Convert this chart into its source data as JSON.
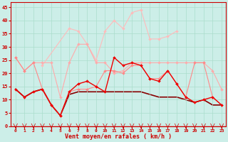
{
  "title": "",
  "xlabel": "Vent moyen/en rafales ( km/h )",
  "background_color": "#cceee8",
  "grid_color": "#aaddcc",
  "x": [
    0,
    1,
    2,
    3,
    4,
    5,
    6,
    7,
    8,
    9,
    10,
    11,
    12,
    13,
    14,
    15,
    16,
    17,
    18,
    19,
    20,
    21,
    22,
    23
  ],
  "ylim": [
    0,
    47
  ],
  "yticks": [
    0,
    5,
    10,
    15,
    20,
    25,
    30,
    35,
    40,
    45
  ],
  "series": [
    {
      "y": [
        null,
        null,
        null,
        23,
        null,
        null,
        37,
        36,
        31,
        25,
        36,
        40,
        37,
        43,
        44,
        33,
        33,
        34,
        36,
        null,
        null,
        null,
        null,
        null
      ],
      "color": "#ffbbbb",
      "linewidth": 0.8,
      "markersize": 2.0,
      "zorder": 2
    },
    {
      "y": [
        26,
        21,
        24,
        24,
        24,
        11,
        24,
        31,
        31,
        24,
        24,
        20,
        21,
        24,
        24,
        24,
        24,
        24,
        24,
        24,
        24,
        24,
        21,
        14
      ],
      "color": "#ffaaaa",
      "linewidth": 0.8,
      "markersize": 2.0,
      "zorder": 2
    },
    {
      "y": [
        26,
        21,
        24,
        14,
        8,
        4,
        13,
        14,
        14,
        15,
        21,
        21,
        20,
        23,
        23,
        18,
        18,
        21,
        16,
        11,
        24,
        24,
        11,
        8
      ],
      "color": "#ff8888",
      "linewidth": 0.8,
      "markersize": 2.0,
      "zorder": 3
    },
    {
      "y": [
        14,
        11,
        13,
        14,
        8,
        4,
        13,
        16,
        17,
        15,
        13,
        26,
        23,
        24,
        23,
        18,
        17,
        21,
        16,
        11,
        9,
        10,
        11,
        8
      ],
      "color": "#ee0000",
      "linewidth": 1.0,
      "markersize": 2.0,
      "zorder": 4
    },
    {
      "y": [
        14,
        11,
        13,
        14,
        8,
        4,
        12,
        13,
        13,
        13,
        13,
        13,
        13,
        13,
        13,
        12,
        11,
        11,
        11,
        10,
        9,
        10,
        8,
        8
      ],
      "color": "#880000",
      "linewidth": 1.2,
      "markersize": 0,
      "zorder": 1
    }
  ]
}
